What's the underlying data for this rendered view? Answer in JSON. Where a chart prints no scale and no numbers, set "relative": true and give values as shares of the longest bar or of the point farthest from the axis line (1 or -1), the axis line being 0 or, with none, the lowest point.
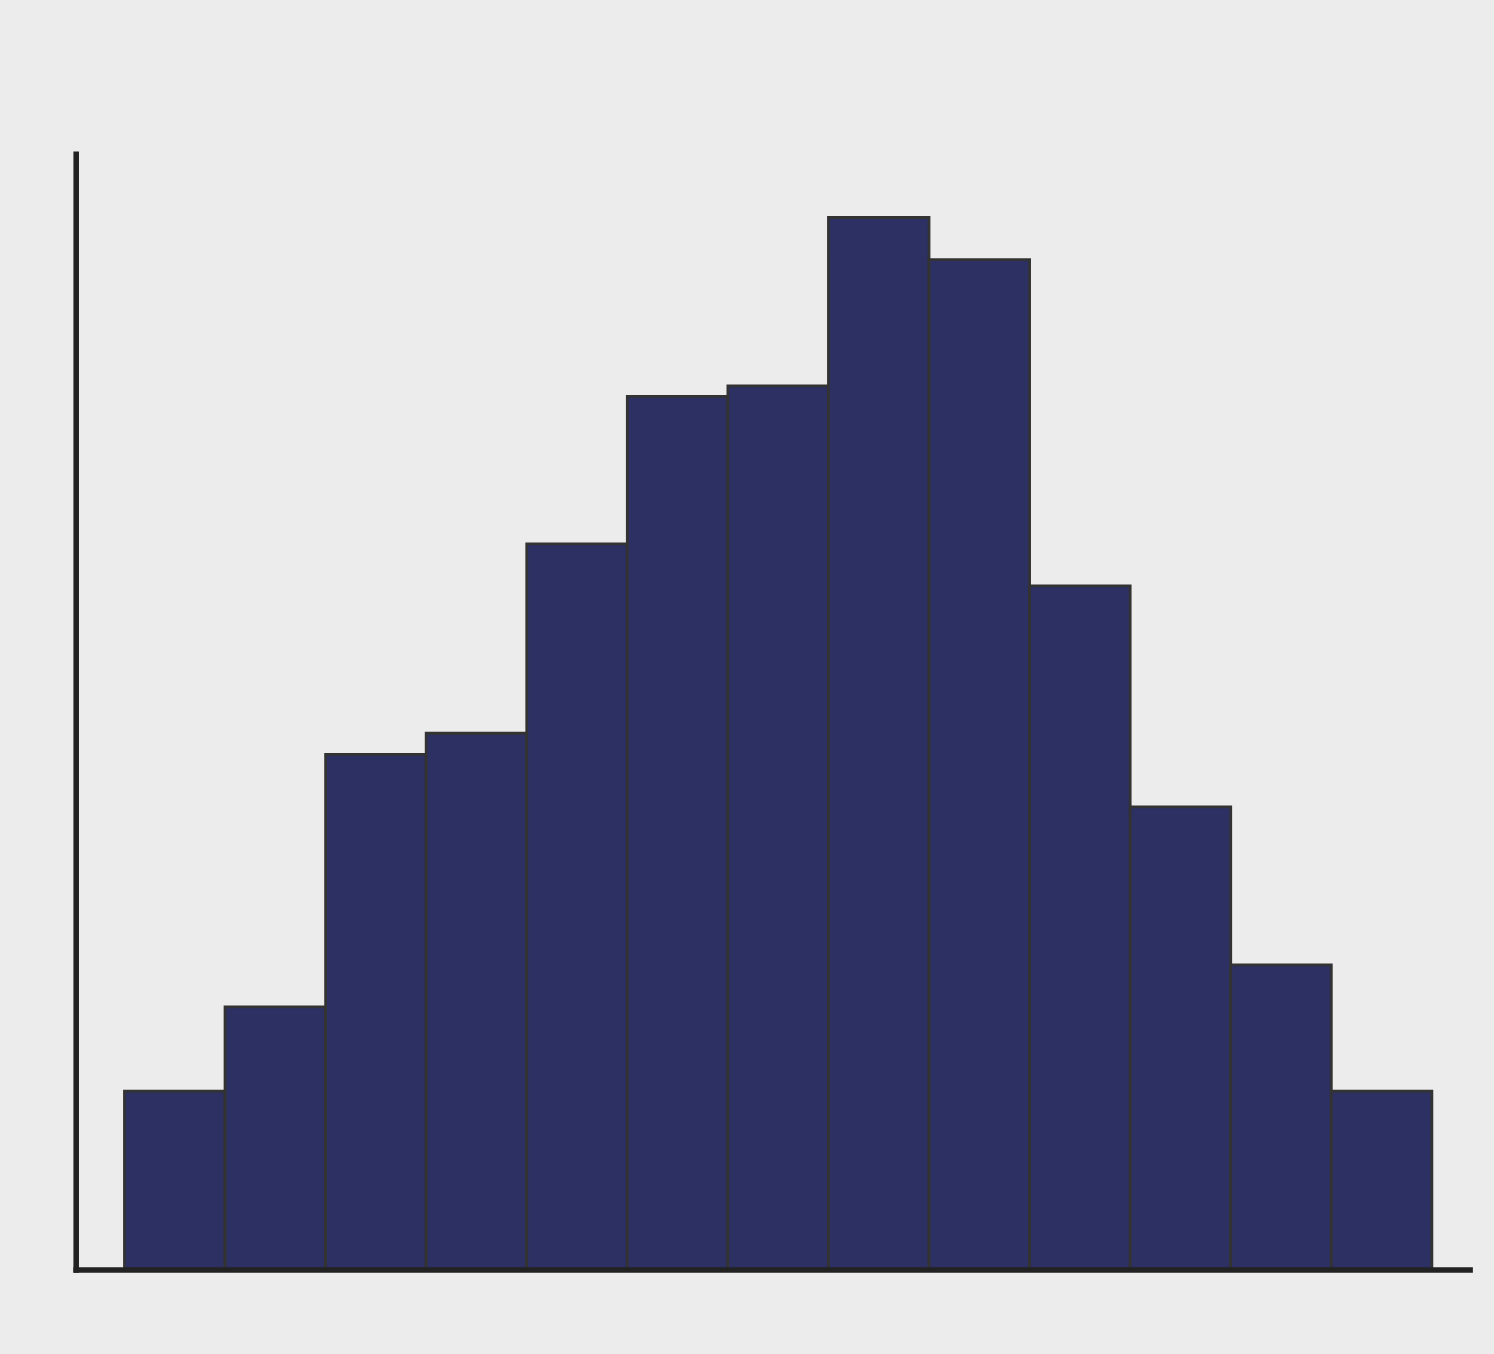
{
  "chart_data": {
    "type": "bar",
    "relative": true,
    "categories": [
      null,
      null,
      null,
      null,
      null,
      null,
      null,
      null,
      null,
      null,
      null,
      null,
      null
    ],
    "values": [
      0.17,
      0.25,
      0.49,
      0.51,
      0.69,
      0.83,
      0.84,
      1,
      0.96,
      0.65,
      0.44,
      0.29,
      0.17
    ],
    "color": "#2d3063",
    "grid": false,
    "legend": false
  }
}
